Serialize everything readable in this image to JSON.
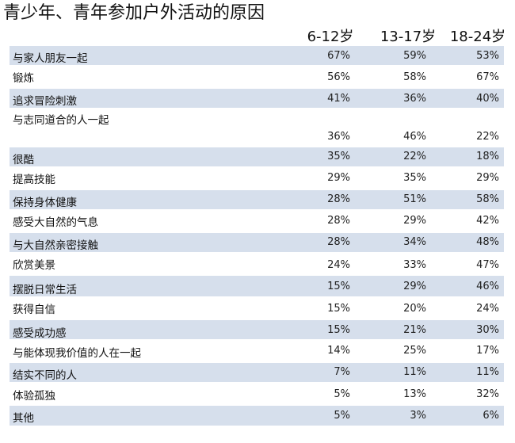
{
  "title": "青少年、青年参加户外活动的原因",
  "columns": [
    "6-12岁",
    "13-17岁",
    "18-24岁"
  ],
  "rows": [
    {
      "label": "与家人朋友一起",
      "values": [
        "67%",
        "59%",
        "53%"
      ],
      "shaded": true
    },
    {
      "label": "锻炼",
      "values": [
        "56%",
        "58%",
        "67%"
      ],
      "shaded": false
    },
    {
      "label": "追求冒险刺激",
      "values": [
        "41%",
        "36%",
        "40%"
      ],
      "shaded": true
    },
    {
      "label": "与志同道合的人一起",
      "values": [
        "36%",
        "46%",
        "22%"
      ],
      "shaded": false
    },
    {
      "label": "很酷",
      "values": [
        "35%",
        "22%",
        "18%"
      ],
      "shaded": true
    },
    {
      "label": "提高技能",
      "values": [
        "29%",
        "35%",
        "29%"
      ],
      "shaded": false
    },
    {
      "label": "保持身体健康",
      "values": [
        "28%",
        "51%",
        "58%"
      ],
      "shaded": true
    },
    {
      "label": "感受大自然的气息",
      "values": [
        "28%",
        "29%",
        "42%"
      ],
      "shaded": false
    },
    {
      "label": "与大自然亲密接触",
      "values": [
        "28%",
        "34%",
        "48%"
      ],
      "shaded": true
    },
    {
      "label": "欣赏美景",
      "values": [
        "24%",
        "33%",
        "47%"
      ],
      "shaded": false
    },
    {
      "label": "摆脱日常生活",
      "values": [
        "15%",
        "29%",
        "46%"
      ],
      "shaded": true
    },
    {
      "label": "获得自信",
      "values": [
        "15%",
        "20%",
        "24%"
      ],
      "shaded": false
    },
    {
      "label": "感受成功感",
      "values": [
        "15%",
        "21%",
        "30%"
      ],
      "shaded": true
    },
    {
      "label": "与能体现我价值的人在一起",
      "values": [
        "14%",
        "25%",
        "17%"
      ],
      "shaded": false
    },
    {
      "label": "结实不同的人",
      "values": [
        "7%",
        "11%",
        "11%"
      ],
      "shaded": true
    },
    {
      "label": "体验孤独",
      "values": [
        "5%",
        "13%",
        "32%"
      ],
      "shaded": false
    },
    {
      "label": "其他",
      "values": [
        "5%",
        "3%",
        "6%"
      ],
      "shaded": true
    }
  ]
}
